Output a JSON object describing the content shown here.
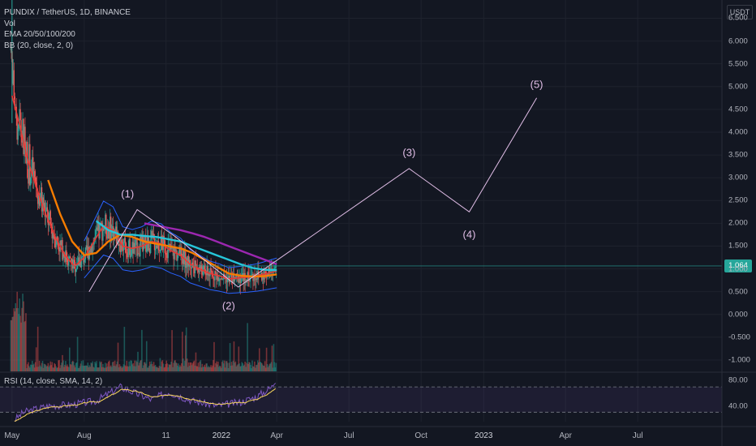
{
  "legend": {
    "symbol": "PUNDIX / TetherUS, 1D, BINANCE",
    "vol": "Vol",
    "ema": "EMA 20/50/100/200",
    "bb": "BB (20, close, 2, 0)"
  },
  "rsi_legend": "RSI (14, close, SMA, 14, 2)",
  "axis_unit": "USDT",
  "last_price_label": "1.064",
  "colors": {
    "background": "#131722",
    "grid": "#1e222d",
    "candle_up": "#26a69a",
    "candle_down": "#ef5350",
    "ema20": "#e53935",
    "ema50": "#f57c00",
    "ema100": "#26c6da",
    "ema200": "#9c27b0",
    "bollinger": "#2962ff",
    "wave": "#e1bee7",
    "rsi_line": "#7e57c2",
    "rsi_ma": "#f9d65c"
  },
  "chart_data": {
    "type": "line",
    "title": "PUNDIX / TetherUS, 1D, BINANCE",
    "y_ticks": [
      "6.500",
      "6.000",
      "5.500",
      "5.000",
      "4.500",
      "4.000",
      "3.500",
      "3.000",
      "2.500",
      "2.000",
      "1.500",
      "1.000",
      "0.500",
      "0.000",
      "-0.500",
      "-1.000"
    ],
    "y_tick_values": [
      6.5,
      6.0,
      5.5,
      5.0,
      4.5,
      4.0,
      3.5,
      3.0,
      2.5,
      2.0,
      1.5,
      1.0,
      0.5,
      0.0,
      -0.5,
      -1.0
    ],
    "ylim": [
      -1.25,
      6.9
    ],
    "x_ticks": [
      {
        "label": "May",
        "major": false
      },
      {
        "label": "Aug",
        "major": false
      },
      {
        "label": "11",
        "major": false
      },
      {
        "label": "2022",
        "major": true
      },
      {
        "label": "Apr",
        "major": false
      },
      {
        "label": "Jul",
        "major": false
      },
      {
        "label": "Oct",
        "major": false
      },
      {
        "label": "2023",
        "major": true
      },
      {
        "label": "Apr",
        "major": false
      },
      {
        "label": "Jul",
        "major": false
      }
    ],
    "x_tick_months": [
      0,
      3,
      6.4,
      8.7,
      11,
      14,
      17,
      19.6,
      23,
      26
    ],
    "xlim_months": [
      -0.5,
      29.5
    ],
    "last_price": 1.064,
    "series": [
      {
        "name": "EMA 20/50/100/200",
        "x": [
          0.0,
          0.3,
          0.6,
          1.0,
          1.4,
          1.8,
          2.2,
          2.6,
          3.0,
          3.4,
          3.8,
          4.2,
          4.6,
          5.0,
          5.4,
          5.8,
          6.2,
          6.6,
          7.0,
          7.4,
          7.8,
          8.2,
          8.6,
          9.0,
          9.4,
          9.8,
          10.2,
          10.6,
          11.0
        ],
        "values": [
          4.8,
          4.2,
          3.5,
          2.8,
          2.2,
          1.7,
          1.3,
          1.05,
          1.25,
          1.6,
          1.95,
          1.85,
          1.5,
          1.45,
          1.5,
          1.6,
          1.55,
          1.4,
          1.3,
          1.1,
          1.0,
          0.9,
          0.85,
          0.78,
          0.8,
          0.82,
          0.85,
          0.9,
          0.95
        ]
      },
      {
        "name": "EMA 20/50/100/200",
        "x": [
          1.5,
          2.0,
          2.5,
          3.0,
          3.5,
          4.0,
          4.5,
          5.0,
          5.5,
          6.0,
          6.5,
          7.0,
          7.5,
          8.0,
          8.5,
          9.0,
          9.5,
          10.0,
          10.5,
          11.0
        ],
        "values": [
          2.95,
          2.2,
          1.6,
          1.3,
          1.35,
          1.6,
          1.75,
          1.7,
          1.6,
          1.55,
          1.5,
          1.45,
          1.35,
          1.2,
          1.05,
          0.9,
          0.85,
          0.83,
          0.84,
          0.88
        ]
      },
      {
        "name": "EMA 20/50/100/200",
        "x": [
          3.5,
          4.0,
          4.5,
          5.0,
          5.5,
          6.0,
          6.5,
          7.0,
          7.5,
          8.0,
          8.5,
          9.0,
          9.5,
          10.0,
          10.5,
          11.0
        ],
        "values": [
          2.05,
          1.85,
          1.75,
          1.75,
          1.72,
          1.7,
          1.65,
          1.6,
          1.5,
          1.4,
          1.3,
          1.2,
          1.1,
          1.02,
          0.98,
          0.97
        ]
      },
      {
        "name": "EMA 20/50/100/200",
        "x": [
          5.5,
          6.0,
          6.5,
          7.0,
          7.5,
          8.0,
          8.5,
          9.0,
          9.5,
          10.0,
          10.5,
          11.0
        ],
        "values": [
          2.0,
          1.95,
          1.9,
          1.85,
          1.78,
          1.7,
          1.6,
          1.5,
          1.4,
          1.3,
          1.2,
          1.1
        ]
      }
    ],
    "wave": {
      "x": [
        3.2,
        5.2,
        6.8,
        9.4,
        16.5,
        19.0,
        21.8
      ],
      "values": [
        0.5,
        2.3,
        1.7,
        0.6,
        3.2,
        2.25,
        4.75
      ],
      "labels": [
        {
          "text": "(1)",
          "x": 4.8,
          "y": 2.65
        },
        {
          "text": "(2)",
          "x": 9.0,
          "y": 0.2
        },
        {
          "text": "(3)",
          "x": 16.5,
          "y": 3.55
        },
        {
          "text": "(4)",
          "x": 19.0,
          "y": 1.75
        },
        {
          "text": "(5)",
          "x": 21.8,
          "y": 5.05
        }
      ]
    },
    "rsi": {
      "y_ticks": [
        "80.00",
        "40.00"
      ],
      "y_tick_values": [
        80,
        40
      ],
      "ylim": [
        15,
        92
      ],
      "overbought": 70,
      "oversold": 30
    }
  }
}
